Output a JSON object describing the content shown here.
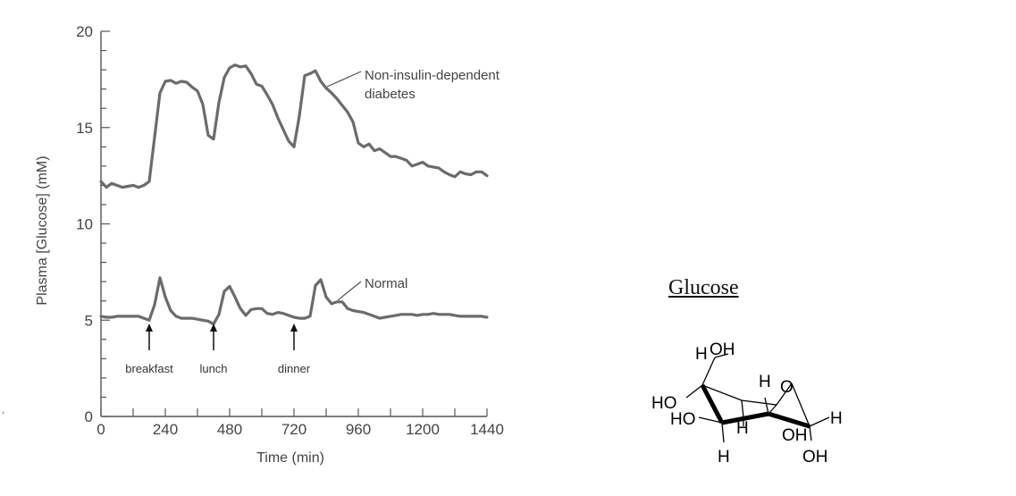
{
  "chart_data": {
    "type": "line",
    "xlabel": "Time (min)",
    "ylabel": "Plasma [Glucose] (mM)",
    "xlim": [
      0,
      1440
    ],
    "ylim": [
      0,
      20
    ],
    "x_ticks": [
      "0",
      "240",
      "480",
      "720",
      "960",
      "1200",
      "1440"
    ],
    "y_ticks": [
      "0",
      "5",
      "10",
      "15",
      "20"
    ],
    "grid": false,
    "series": [
      {
        "name": "Non-insulin-dependent diabetes",
        "label_lines": [
          "Non-insulin-dependent",
          "diabetes"
        ],
        "x": [
          0,
          20,
          40,
          60,
          80,
          100,
          120,
          140,
          160,
          180,
          200,
          220,
          240,
          260,
          280,
          300,
          320,
          340,
          360,
          380,
          400,
          420,
          440,
          460,
          480,
          500,
          520,
          540,
          560,
          580,
          600,
          620,
          640,
          660,
          680,
          700,
          720,
          740,
          760,
          780,
          800,
          820,
          840,
          860,
          880,
          900,
          920,
          940,
          960,
          980,
          1000,
          1020,
          1040,
          1060,
          1080,
          1100,
          1120,
          1140,
          1160,
          1180,
          1200,
          1220,
          1240,
          1260,
          1280,
          1300,
          1320,
          1340,
          1360,
          1380,
          1400,
          1420,
          1440
        ],
        "values": [
          12.2,
          11.9,
          12.1,
          12.0,
          11.9,
          11.95,
          12.0,
          11.9,
          12.0,
          12.2,
          14.5,
          16.8,
          17.4,
          17.45,
          17.3,
          17.4,
          17.35,
          17.1,
          16.9,
          16.2,
          14.6,
          14.4,
          16.3,
          17.6,
          18.1,
          18.25,
          18.15,
          18.2,
          17.8,
          17.25,
          17.15,
          16.7,
          16.2,
          15.5,
          14.9,
          14.3,
          14.0,
          15.6,
          17.7,
          17.8,
          17.95,
          17.4,
          17.05,
          16.8,
          16.5,
          16.15,
          15.8,
          15.3,
          14.2,
          14.0,
          14.15,
          13.8,
          13.9,
          13.7,
          13.5,
          13.5,
          13.4,
          13.3,
          13.0,
          13.1,
          13.2,
          13.0,
          12.95,
          12.9,
          12.7,
          12.55,
          12.45,
          12.7,
          12.6,
          12.55,
          12.7,
          12.7,
          12.5
        ]
      },
      {
        "name": "Normal",
        "label_lines": [
          "Normal"
        ],
        "x": [
          0,
          20,
          40,
          60,
          80,
          100,
          120,
          140,
          160,
          180,
          200,
          220,
          240,
          260,
          280,
          300,
          320,
          340,
          360,
          380,
          400,
          420,
          440,
          460,
          480,
          500,
          520,
          540,
          560,
          580,
          600,
          620,
          640,
          660,
          680,
          700,
          720,
          740,
          760,
          780,
          800,
          820,
          840,
          860,
          880,
          900,
          920,
          940,
          960,
          980,
          1000,
          1020,
          1040,
          1060,
          1080,
          1100,
          1120,
          1140,
          1160,
          1180,
          1200,
          1220,
          1240,
          1260,
          1280,
          1300,
          1320,
          1340,
          1360,
          1380,
          1400,
          1420,
          1440
        ],
        "values": [
          5.2,
          5.15,
          5.15,
          5.2,
          5.2,
          5.2,
          5.2,
          5.2,
          5.1,
          5.0,
          5.8,
          7.2,
          6.2,
          5.5,
          5.2,
          5.1,
          5.1,
          5.1,
          5.05,
          5.0,
          4.95,
          4.8,
          5.3,
          6.5,
          6.75,
          6.2,
          5.6,
          5.25,
          5.55,
          5.6,
          5.6,
          5.35,
          5.3,
          5.4,
          5.35,
          5.25,
          5.15,
          5.1,
          5.1,
          5.2,
          6.8,
          7.1,
          6.2,
          5.85,
          5.95,
          5.95,
          5.6,
          5.5,
          5.45,
          5.4,
          5.3,
          5.2,
          5.1,
          5.15,
          5.2,
          5.25,
          5.3,
          5.3,
          5.3,
          5.25,
          5.3,
          5.3,
          5.35,
          5.3,
          5.3,
          5.3,
          5.25,
          5.2,
          5.2,
          5.2,
          5.2,
          5.2,
          5.15
        ]
      }
    ],
    "annotations": [
      {
        "text": "breakfast",
        "x": 180
      },
      {
        "text": "lunch",
        "x": 420
      },
      {
        "text": "dinner",
        "x": 720
      }
    ]
  },
  "molecule": {
    "title": "Glucose",
    "atoms": {
      "h_top": "H",
      "oh_top": "OH",
      "h_upper_right": "H",
      "o_ring": "O",
      "ho_left_upper": "HO",
      "ho_left_lower": "HO",
      "h_mid": "H",
      "h_right": "H",
      "oh_lower": "OH",
      "h_bottom_left": "H",
      "oh_bottom_right": "OH"
    }
  },
  "stray_mark": ","
}
